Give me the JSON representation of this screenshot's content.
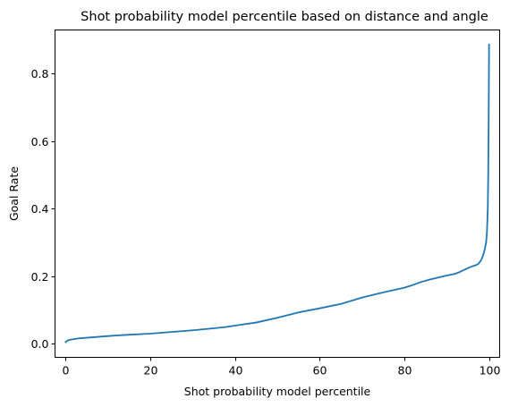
{
  "chart_data": {
    "type": "line",
    "title": "Shot probability model percentile based on distance and angle",
    "xlabel": "Shot probability model percentile",
    "ylabel": "Goal Rate",
    "xlim": [
      -2.5,
      102.5
    ],
    "ylim": [
      -0.04,
      0.928
    ],
    "xticks": [
      0,
      20,
      40,
      60,
      80,
      100
    ],
    "yticks": [
      0.0,
      0.2,
      0.4,
      0.6,
      0.8
    ],
    "grid": false,
    "legend": "none",
    "series": [
      {
        "color": "#1f77b4",
        "x": [
          0,
          0.5,
          1,
          2,
          3,
          5,
          7,
          10,
          15,
          20,
          25,
          30,
          35,
          38,
          40,
          45,
          50,
          55,
          60,
          65,
          70,
          75,
          80,
          82,
          84,
          86,
          88,
          90,
          92,
          93,
          94,
          95,
          96,
          97,
          97.5,
          98,
          98.5,
          99,
          99.3,
          99.5,
          99.7,
          99.8,
          99.9,
          100
        ],
        "y": [
          0.005,
          0.01,
          0.012,
          0.014,
          0.016,
          0.018,
          0.02,
          0.023,
          0.027,
          0.03,
          0.035,
          0.04,
          0.046,
          0.05,
          0.054,
          0.063,
          0.077,
          0.093,
          0.105,
          0.118,
          0.137,
          0.152,
          0.166,
          0.174,
          0.183,
          0.19,
          0.196,
          0.202,
          0.207,
          0.212,
          0.218,
          0.224,
          0.229,
          0.233,
          0.237,
          0.245,
          0.258,
          0.28,
          0.3,
          0.33,
          0.4,
          0.5,
          0.65,
          0.885
        ]
      }
    ]
  }
}
